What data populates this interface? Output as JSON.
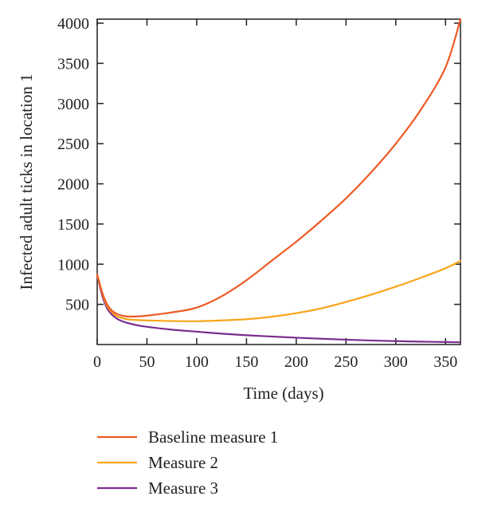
{
  "chart_data": {
    "type": "line",
    "title": "",
    "xlabel": "Time (days)",
    "ylabel": "Infected adult ticks in location 1",
    "xlim": [
      0,
      365
    ],
    "ylim": [
      0,
      4050
    ],
    "xticks": [
      0,
      50,
      100,
      150,
      200,
      250,
      300,
      350
    ],
    "yticks": [
      500,
      1000,
      1500,
      2000,
      2500,
      3000,
      3500,
      4000
    ],
    "grid": false,
    "legend_position": "below",
    "series": [
      {
        "name": "Baseline measure 1",
        "color": "#ee5a24",
        "x": [
          0,
          5,
          10,
          15,
          20,
          25,
          30,
          40,
          50,
          75,
          100,
          125,
          150,
          175,
          200,
          225,
          250,
          275,
          300,
          325,
          350,
          365
        ],
        "y": [
          870,
          650,
          500,
          420,
          380,
          360,
          350,
          350,
          360,
          400,
          460,
          600,
          800,
          1040,
          1280,
          1540,
          1820,
          2140,
          2500,
          2920,
          3450,
          4050
        ]
      },
      {
        "name": "Measure 2",
        "color": "#f9a51b",
        "x": [
          0,
          5,
          10,
          15,
          20,
          25,
          30,
          40,
          50,
          75,
          100,
          125,
          150,
          175,
          200,
          225,
          250,
          275,
          300,
          325,
          350,
          365
        ],
        "y": [
          870,
          640,
          480,
          400,
          350,
          330,
          315,
          305,
          300,
          292,
          290,
          300,
          315,
          345,
          390,
          450,
          530,
          620,
          720,
          830,
          950,
          1040
        ]
      },
      {
        "name": "Measure 3",
        "color": "#7b2d8e",
        "x": [
          0,
          5,
          10,
          15,
          20,
          25,
          30,
          40,
          50,
          75,
          100,
          125,
          150,
          175,
          200,
          225,
          250,
          275,
          300,
          325,
          350,
          365
        ],
        "y": [
          870,
          610,
          450,
          370,
          320,
          290,
          270,
          240,
          220,
          185,
          160,
          135,
          115,
          100,
          85,
          72,
          60,
          50,
          42,
          36,
          31,
          28
        ]
      }
    ]
  }
}
